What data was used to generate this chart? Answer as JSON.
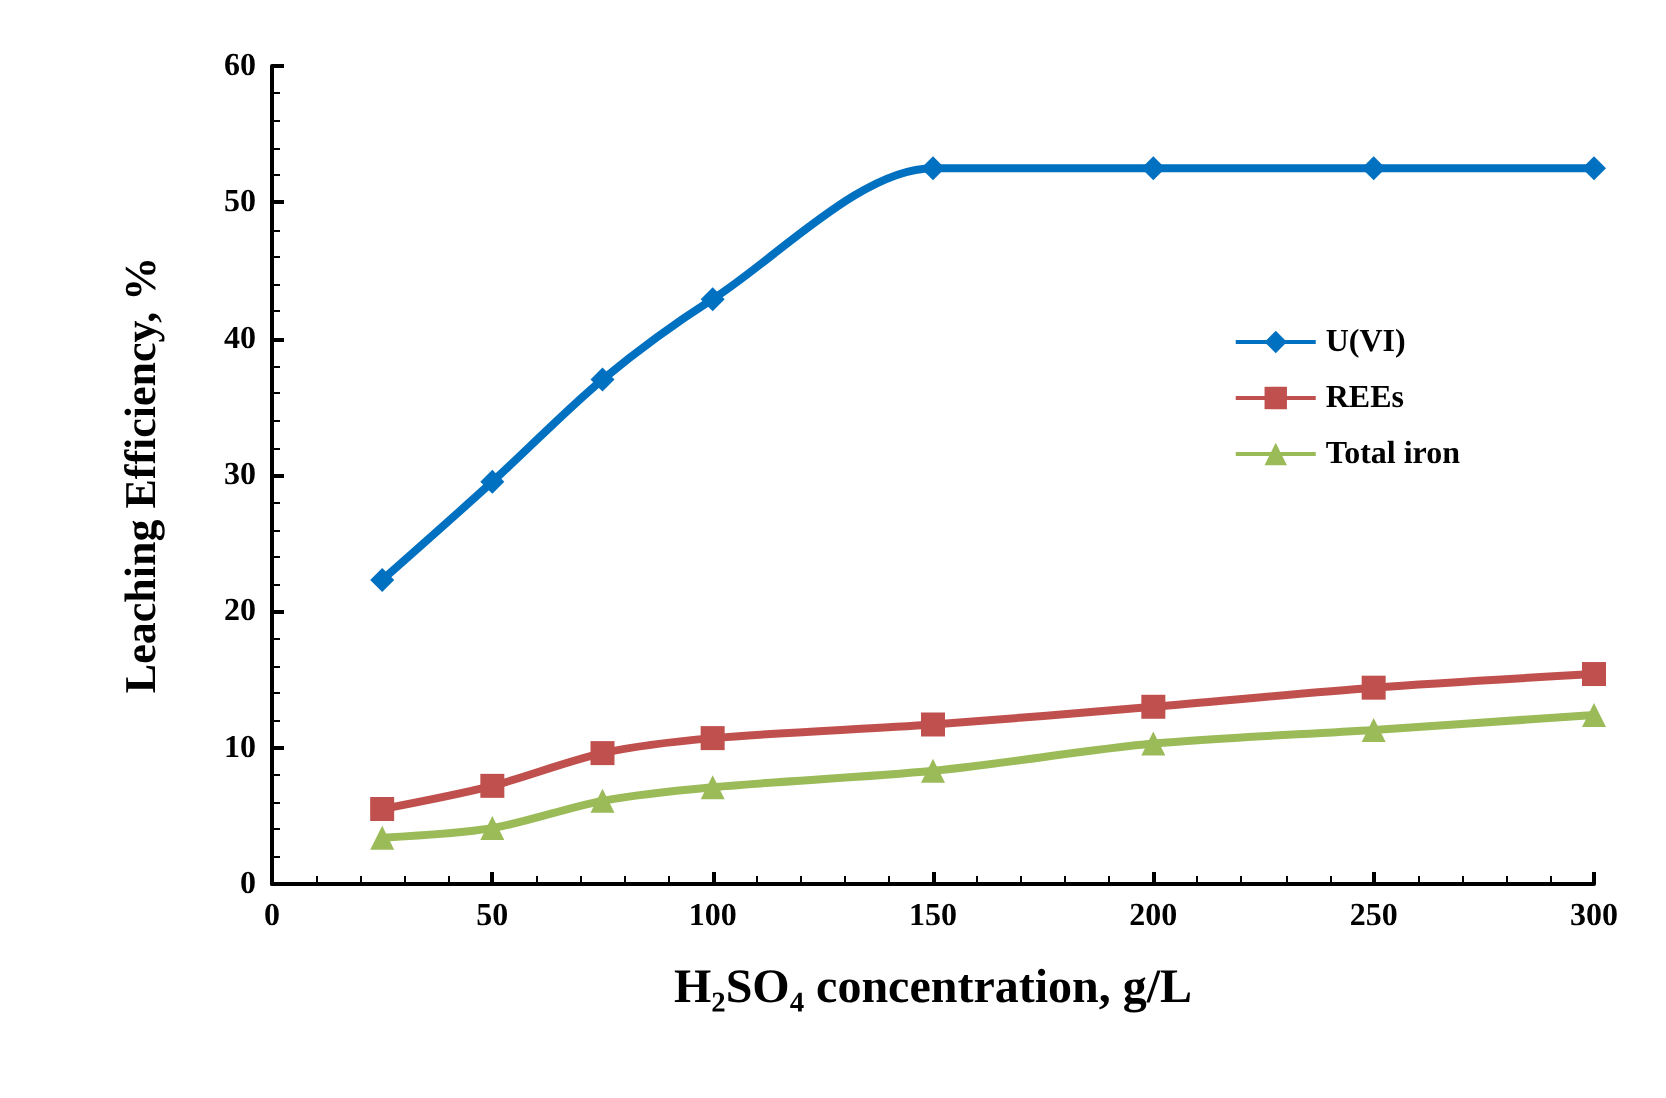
{
  "chart_data": {
    "type": "line",
    "xlabel": "H₂SO₄ concentration, g/L",
    "ylabel": "Leaching Efficiency, %",
    "x": [
      25,
      50,
      75,
      100,
      150,
      200,
      250,
      300
    ],
    "xlim": [
      0,
      300
    ],
    "xticks": [
      0,
      50,
      100,
      150,
      200,
      250,
      300
    ],
    "ylim": [
      0,
      60
    ],
    "yticks": [
      0,
      10,
      20,
      30,
      40,
      50,
      60
    ],
    "grid": false,
    "legend": "right",
    "series": [
      {
        "name": "U(VI)",
        "color": "#0070c0",
        "marker": "diamond",
        "values": [
          22.3,
          29.5,
          37.0,
          42.9,
          52.5,
          52.5,
          52.5,
          52.5
        ]
      },
      {
        "name": "REEs",
        "color": "#c0504d",
        "marker": "square",
        "values": [
          5.5,
          7.2,
          9.6,
          10.7,
          11.7,
          13.0,
          14.4,
          15.4
        ]
      },
      {
        "name": "Total iron",
        "color": "#9bbb59",
        "marker": "triangle",
        "values": [
          3.4,
          4.1,
          6.1,
          7.1,
          8.3,
          10.3,
          11.3,
          12.4
        ]
      }
    ]
  }
}
